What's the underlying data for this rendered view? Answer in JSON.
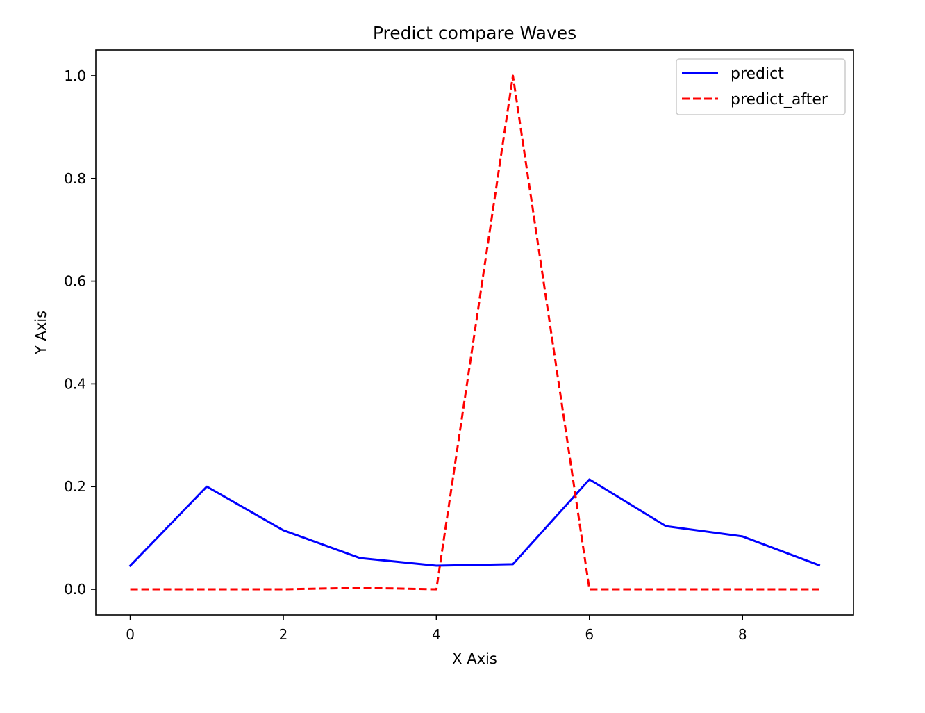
{
  "chart_data": {
    "type": "line",
    "title": "Predict compare Waves",
    "xlabel": "X Axis",
    "ylabel": "Y Axis",
    "x": [
      0,
      1,
      2,
      3,
      4,
      5,
      6,
      7,
      8,
      9
    ],
    "xlim": [
      -0.45,
      9.45
    ],
    "ylim": [
      -0.05,
      1.05
    ],
    "xticks": [
      0,
      2,
      4,
      6,
      8
    ],
    "xtick_labels": [
      "0",
      "2",
      "4",
      "6",
      "8"
    ],
    "yticks": [
      0.0,
      0.2,
      0.4,
      0.6,
      0.8,
      1.0
    ],
    "ytick_labels": [
      "0.0",
      "0.2",
      "0.4",
      "0.6",
      "0.8",
      "1.0"
    ],
    "grid": false,
    "legend_position": "top-right",
    "series": [
      {
        "name": "predict",
        "color": "#0000ff",
        "style": "solid",
        "values": [
          0.046,
          0.2,
          0.115,
          0.061,
          0.046,
          0.049,
          0.214,
          0.123,
          0.103,
          0.047
        ]
      },
      {
        "name": "predict_after",
        "color": "#ff0000",
        "style": "dashed",
        "values": [
          0.0,
          0.0,
          0.0,
          0.003,
          0.0,
          1.0,
          0.0,
          0.0,
          0.0,
          0.0
        ]
      }
    ]
  }
}
